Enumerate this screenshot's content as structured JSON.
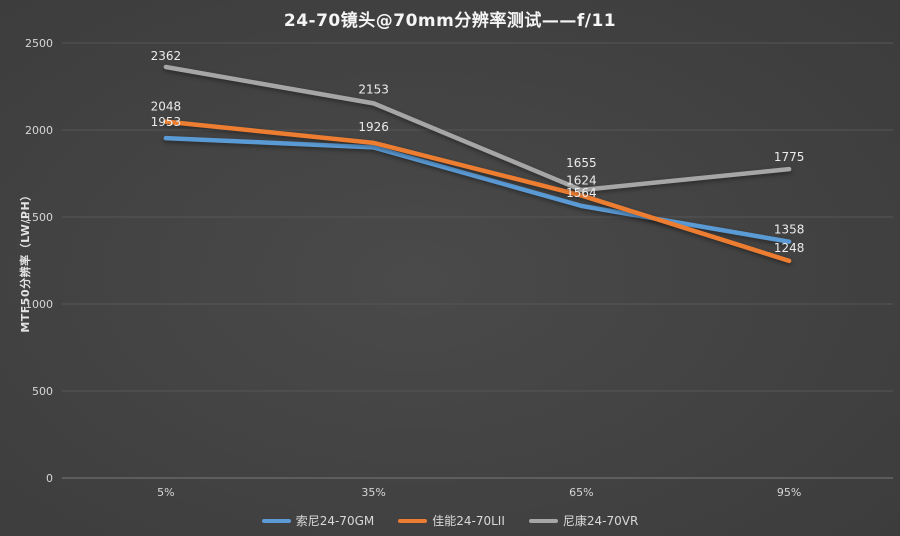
{
  "title": "24-70镜头@70mm分辨率测试——f/11",
  "colors": {
    "background": "#3e3e3e",
    "grid": "#565656",
    "axis_line": "#787878",
    "tick_text": "#d6d6d6",
    "data_label_text": "#ebebeb",
    "title_text": "#f5f5f5"
  },
  "chart_data": {
    "type": "line",
    "title": "24-70镜头@70mm分辨率测试——f/11",
    "xlabel": "",
    "ylabel": "MTF50分辨率（LW/PH）",
    "categories": [
      "5%",
      "35%",
      "65%",
      "95%"
    ],
    "series": [
      {
        "name": "索尼24-70GM",
        "color": "#5b9bd5",
        "values": [
          1953,
          1900,
          1564,
          1358
        ],
        "labels": [
          "1953",
          "",
          "1564",
          "1358"
        ],
        "label_dy": [
          -12,
          -10,
          -9,
          -8
        ]
      },
      {
        "name": "佳能24-70LII",
        "color": "#ed7d31",
        "values": [
          2048,
          1926,
          1624,
          1248
        ],
        "labels": [
          "2048",
          "1926",
          "1624",
          "1248"
        ],
        "label_dy": [
          -11,
          -12,
          -11,
          -9
        ]
      },
      {
        "name": "尼康24-70VR",
        "color": "#a6a6a6",
        "values": [
          2362,
          2153,
          1655,
          1775
        ],
        "labels": [
          "2362",
          "2153",
          "1655",
          "1775"
        ],
        "label_dy": [
          -7,
          -10,
          -23,
          -8
        ]
      }
    ],
    "ylim": [
      0,
      2500
    ],
    "yticks": [
      0,
      500,
      1000,
      1500,
      2000,
      2500
    ],
    "grid": true,
    "legend_position": "bottom"
  }
}
